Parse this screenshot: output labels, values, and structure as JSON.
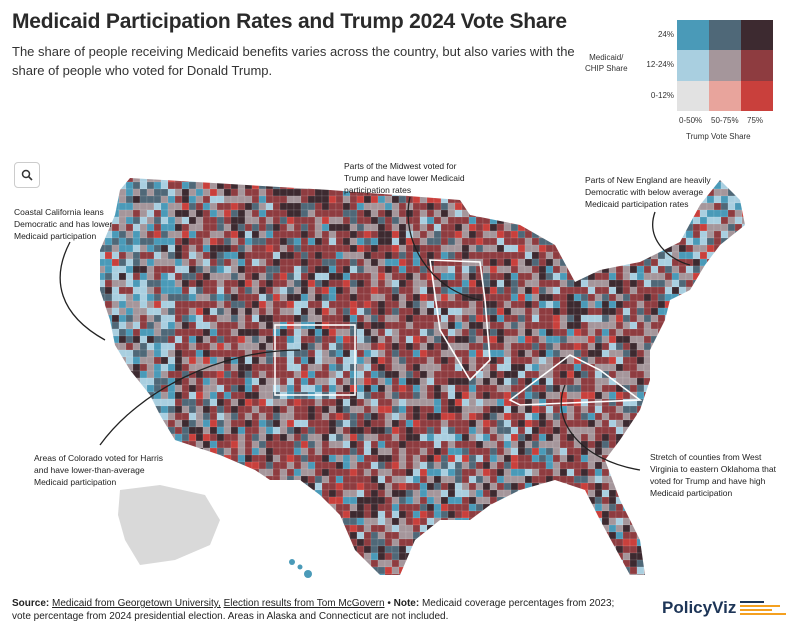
{
  "title": "Medicaid Participation Rates and Trump 2024 Vote Share",
  "subtitle": "The share of people receiving Medicaid benefits varies across the country, but also varies with the share of people who voted for Donald Trump.",
  "legend": {
    "y_label_line1": "Medicaid/",
    "y_label_line2": "CHIP Share",
    "x_label": "Trump Vote Share",
    "rows": [
      "24%",
      "12-24%",
      "0-12%"
    ],
    "cols": [
      "0-50%",
      "50-75%",
      "75%"
    ],
    "colors": [
      [
        "#4a9ab8",
        "#4f6878",
        "#3d2a30"
      ],
      [
        "#a9cfe0",
        "#a5969b",
        "#8e3c40"
      ],
      [
        "#e2e2e2",
        "#e8a49c",
        "#c9403c"
      ]
    ]
  },
  "search_icon": "search-icon",
  "annotations": {
    "california": "Coastal California leans Democratic and has lower Medicaid participation",
    "midwest": "Parts of the Midwest voted for Trump and have lower Medicaid participation rates",
    "new_england": "Parts of New England are heavily Democratic with below average Medicaid participation rates",
    "colorado": "Areas of Colorado voted for Harris and have lower-than-average Medicaid participation",
    "appalachia": "Stretch of counties from West Virginia to eastern Oklahoma that voted for Trump and have high Medicaid participation"
  },
  "footer": {
    "source_label": "Source:",
    "source_link1": "Medicaid from Georgetown University,",
    "source_link2": "Election results from Tom McGovern",
    "bullet": " • ",
    "note_label": "Note:",
    "note_text": " Medicaid coverage percentages from 2023; vote percentage from 2024 presidential election. Areas in Alaska and Connecticut are not included."
  },
  "brand": "PolicyViz",
  "brand_colors": [
    "#1d3557",
    "#f4a020"
  ],
  "no_data_color": "#d9d9d9"
}
